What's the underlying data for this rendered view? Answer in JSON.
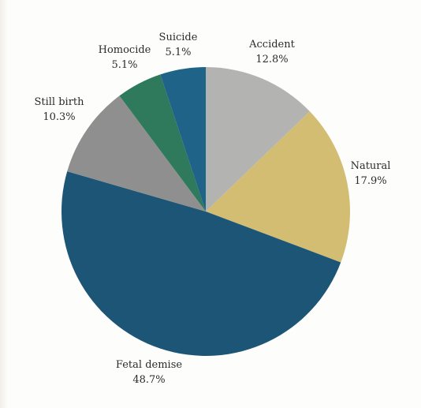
{
  "chart_data": {
    "type": "pie",
    "title": "",
    "slices": [
      {
        "label": "Accident",
        "value": 12.8,
        "display": "12.8%",
        "color": "#b3b3b1"
      },
      {
        "label": "Natural",
        "value": 17.9,
        "display": "17.9%",
        "color": "#d2bd73"
      },
      {
        "label": "Fetal demise",
        "value": 48.7,
        "display": "48.7%",
        "color": "#1c5575"
      },
      {
        "label": "Still birth",
        "value": 10.3,
        "display": "10.3%",
        "color": "#8f8f8f"
      },
      {
        "label": "Homocide",
        "value": 5.1,
        "display": "5.1%",
        "color": "#2f7a5c"
      },
      {
        "label": "Suicide",
        "value": 5.1,
        "display": "5.1%",
        "color": "#1f6488"
      }
    ],
    "start_angle": "top",
    "direction": "clockwise",
    "legend": "none",
    "labels": "outside"
  }
}
